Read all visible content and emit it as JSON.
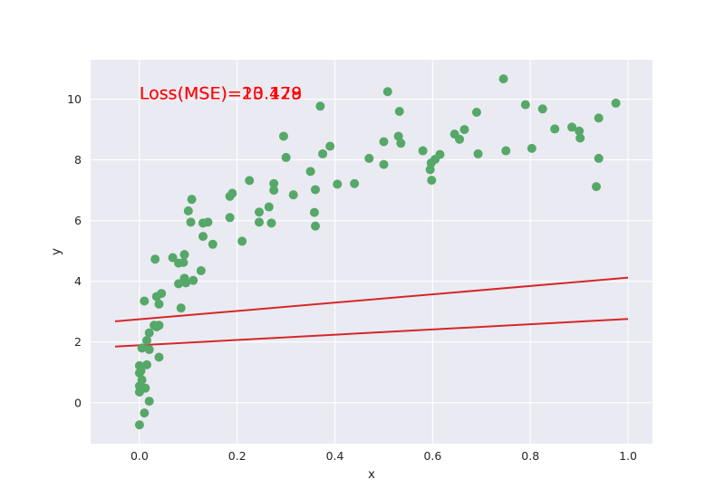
{
  "chart_data": {
    "type": "scatter",
    "title": "",
    "xlabel": "x",
    "ylabel": "y",
    "xlim": [
      -0.1,
      1.05
    ],
    "ylim": [
      -1.35,
      11.3
    ],
    "xticks": [
      0.0,
      0.2,
      0.4,
      0.6,
      0.8,
      1.0
    ],
    "xtick_labels": [
      "0.0",
      "0.2",
      "0.4",
      "0.6",
      "0.8",
      "1.0"
    ],
    "yticks": [
      0,
      2,
      4,
      6,
      8,
      10
    ],
    "ytick_labels": [
      "0",
      "2",
      "4",
      "6",
      "8",
      "10"
    ],
    "grid": true,
    "background": "#eaeaf2",
    "grid_color": "#ffffff",
    "point_color": "#55a868",
    "line_color": "#d62728",
    "annotation_color": "#ff0000",
    "annotations": [
      {
        "text": "Loss(MSE)=20.429",
        "x": 0.0,
        "y": 10.0
      },
      {
        "text": "Loss(MSE)=13.178",
        "x": 0.0,
        "y": 10.0
      }
    ],
    "lines": [
      {
        "x": [
          -0.05,
          1.0
        ],
        "y": [
          2.68,
          4.12
        ]
      },
      {
        "x": [
          -0.05,
          1.0
        ],
        "y": [
          1.85,
          2.76
        ]
      }
    ],
    "points": [
      {
        "x": 0.0,
        "y": -0.73
      },
      {
        "x": 0.01,
        "y": -0.34
      },
      {
        "x": 0.02,
        "y": 0.05
      },
      {
        "x": 0.0,
        "y": 0.35
      },
      {
        "x": 0.0,
        "y": 0.55
      },
      {
        "x": 0.005,
        "y": 0.75
      },
      {
        "x": 0.0,
        "y": 0.98
      },
      {
        "x": 0.0,
        "y": 1.22
      },
      {
        "x": 0.015,
        "y": 1.25
      },
      {
        "x": 0.012,
        "y": 0.48
      },
      {
        "x": 0.003,
        "y": 1.05
      },
      {
        "x": 0.04,
        "y": 1.5
      },
      {
        "x": 0.005,
        "y": 1.8
      },
      {
        "x": 0.02,
        "y": 1.75
      },
      {
        "x": 0.015,
        "y": 2.05
      },
      {
        "x": 0.02,
        "y": 2.3
      },
      {
        "x": 0.03,
        "y": 2.55
      },
      {
        "x": 0.035,
        "y": 2.5
      },
      {
        "x": 0.04,
        "y": 2.55
      },
      {
        "x": 0.01,
        "y": 3.35
      },
      {
        "x": 0.04,
        "y": 3.25
      },
      {
        "x": 0.035,
        "y": 3.5
      },
      {
        "x": 0.045,
        "y": 3.6
      },
      {
        "x": 0.085,
        "y": 3.12
      },
      {
        "x": 0.08,
        "y": 3.92
      },
      {
        "x": 0.095,
        "y": 3.95
      },
      {
        "x": 0.11,
        "y": 4.03
      },
      {
        "x": 0.092,
        "y": 4.1
      },
      {
        "x": 0.126,
        "y": 4.35
      },
      {
        "x": 0.032,
        "y": 4.73
      },
      {
        "x": 0.068,
        "y": 4.78
      },
      {
        "x": 0.08,
        "y": 4.6
      },
      {
        "x": 0.09,
        "y": 4.62
      },
      {
        "x": 0.092,
        "y": 4.88
      },
      {
        "x": 0.15,
        "y": 5.22
      },
      {
        "x": 0.13,
        "y": 5.48
      },
      {
        "x": 0.21,
        "y": 5.32
      },
      {
        "x": 0.105,
        "y": 5.95
      },
      {
        "x": 0.13,
        "y": 5.92
      },
      {
        "x": 0.14,
        "y": 5.95
      },
      {
        "x": 0.1,
        "y": 6.32
      },
      {
        "x": 0.185,
        "y": 6.1
      },
      {
        "x": 0.245,
        "y": 5.95
      },
      {
        "x": 0.27,
        "y": 5.92
      },
      {
        "x": 0.245,
        "y": 6.28
      },
      {
        "x": 0.265,
        "y": 6.45
      },
      {
        "x": 0.185,
        "y": 6.8
      },
      {
        "x": 0.19,
        "y": 6.9
      },
      {
        "x": 0.107,
        "y": 6.7
      },
      {
        "x": 0.225,
        "y": 7.32
      },
      {
        "x": 0.275,
        "y": 7.0
      },
      {
        "x": 0.275,
        "y": 7.22
      },
      {
        "x": 0.315,
        "y": 6.85
      },
      {
        "x": 0.36,
        "y": 5.82
      },
      {
        "x": 0.358,
        "y": 6.27
      },
      {
        "x": 0.36,
        "y": 7.02
      },
      {
        "x": 0.35,
        "y": 7.62
      },
      {
        "x": 0.3,
        "y": 8.08
      },
      {
        "x": 0.295,
        "y": 8.78
      },
      {
        "x": 0.375,
        "y": 8.2
      },
      {
        "x": 0.39,
        "y": 8.45
      },
      {
        "x": 0.405,
        "y": 7.2
      },
      {
        "x": 0.44,
        "y": 7.22
      },
      {
        "x": 0.37,
        "y": 9.77
      },
      {
        "x": 0.47,
        "y": 8.05
      },
      {
        "x": 0.5,
        "y": 7.85
      },
      {
        "x": 0.5,
        "y": 8.6
      },
      {
        "x": 0.53,
        "y": 8.78
      },
      {
        "x": 0.535,
        "y": 8.55
      },
      {
        "x": 0.532,
        "y": 9.6
      },
      {
        "x": 0.508,
        "y": 10.25
      },
      {
        "x": 0.58,
        "y": 8.3
      },
      {
        "x": 0.595,
        "y": 7.68
      },
      {
        "x": 0.598,
        "y": 7.33
      },
      {
        "x": 0.597,
        "y": 7.9
      },
      {
        "x": 0.605,
        "y": 8.02
      },
      {
        "x": 0.615,
        "y": 8.18
      },
      {
        "x": 0.645,
        "y": 8.85
      },
      {
        "x": 0.655,
        "y": 8.68
      },
      {
        "x": 0.665,
        "y": 9.0
      },
      {
        "x": 0.69,
        "y": 9.57
      },
      {
        "x": 0.693,
        "y": 8.2
      },
      {
        "x": 0.745,
        "y": 10.67
      },
      {
        "x": 0.75,
        "y": 8.3
      },
      {
        "x": 0.79,
        "y": 9.82
      },
      {
        "x": 0.803,
        "y": 8.38
      },
      {
        "x": 0.825,
        "y": 9.68
      },
      {
        "x": 0.85,
        "y": 9.02
      },
      {
        "x": 0.885,
        "y": 9.08
      },
      {
        "x": 0.9,
        "y": 8.95
      },
      {
        "x": 0.902,
        "y": 8.72
      },
      {
        "x": 0.935,
        "y": 7.12
      },
      {
        "x": 0.94,
        "y": 8.05
      },
      {
        "x": 0.94,
        "y": 9.38
      },
      {
        "x": 0.975,
        "y": 9.87
      }
    ]
  }
}
